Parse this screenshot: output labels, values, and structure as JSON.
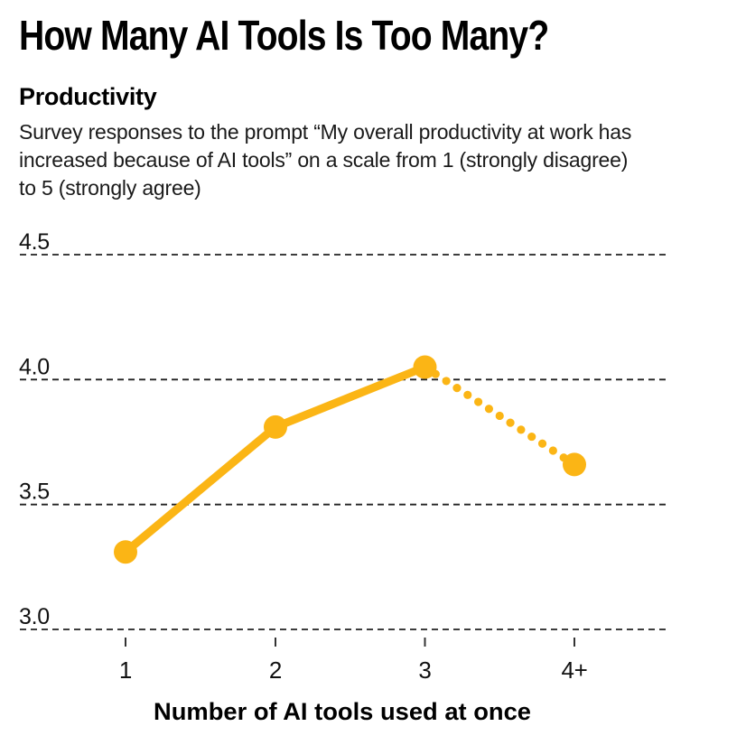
{
  "chart_data": {
    "type": "line",
    "title": "How Many AI Tools Is Too Many?",
    "subtitle": "Productivity",
    "description_lines": [
      "Survey responses to the prompt “My overall productivity at work has",
      "increased because of AI tools” on a scale from 1 (strongly disagree)",
      "to 5 (strongly agree)"
    ],
    "categories": [
      "1",
      "2",
      "3",
      "4+"
    ],
    "values": [
      3.31,
      3.81,
      4.05,
      3.66
    ],
    "series_name": "Productivity",
    "xlabel": "Number of AI tools used at once",
    "ylabel": "",
    "yticks": [
      4.5,
      4.0,
      3.5,
      3.0
    ],
    "ytick_labels": [
      "4.5",
      "4.0",
      "3.5",
      "3.0"
    ],
    "ylim": [
      3.0,
      4.5
    ],
    "grid": "horizontal-dashed",
    "legend": "none",
    "dashed_segment_between": [
      "3",
      "4+"
    ],
    "line_color": "#FBB515",
    "grid_color": "#222222",
    "tick_color": "#333333",
    "text_color": "#111111"
  }
}
